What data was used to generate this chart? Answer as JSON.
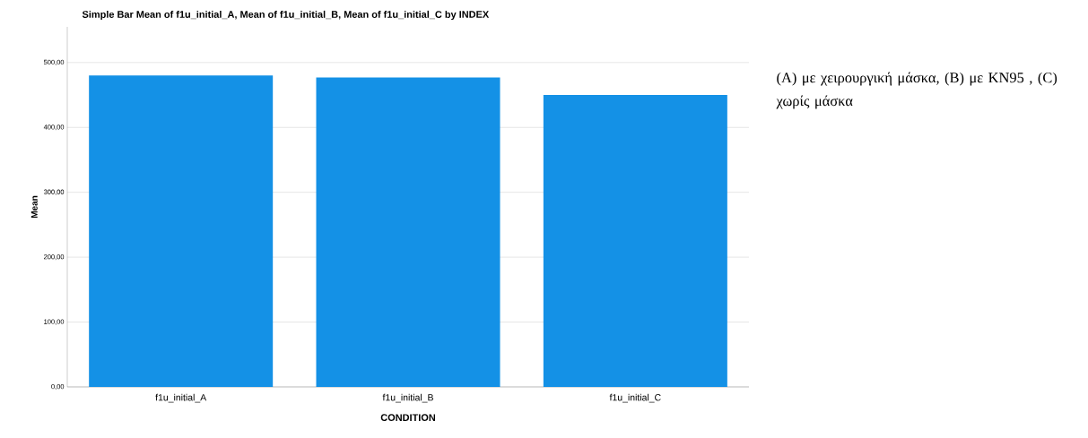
{
  "chart_data": {
    "type": "bar",
    "title": "Simple Bar Mean of f1u_initial_A, Mean of f1u_initial_B, Mean of f1u_initial_C by INDEX",
    "xlabel": "CONDITION",
    "ylabel": "Mean",
    "categories": [
      "f1u_initial_A",
      "f1u_initial_B",
      "f1u_initial_C"
    ],
    "values": [
      480,
      477,
      450
    ],
    "color": "#1491e6",
    "ylim": [
      0,
      555
    ],
    "yticks": [
      {
        "value": 0,
        "label": "0,00"
      },
      {
        "value": 100,
        "label": "100,00"
      },
      {
        "value": 200,
        "label": "200,00"
      },
      {
        "value": 300,
        "label": "300,00"
      },
      {
        "value": 400,
        "label": "400,00"
      },
      {
        "value": 500,
        "label": "500,00"
      }
    ],
    "grid": "y",
    "annotations": [
      "(A) με χειρουργική μάσκα, (B) με KN95 , (C) χωρίς μάσκα"
    ]
  }
}
